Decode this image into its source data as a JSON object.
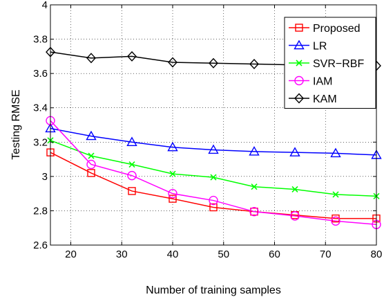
{
  "chart_data": {
    "type": "line",
    "xlabel": "Number of training samples",
    "ylabel": "Testing RMSE",
    "xlim": [
      16,
      80
    ],
    "ylim": [
      2.6,
      4.0
    ],
    "xticks": [
      20,
      30,
      40,
      50,
      60,
      70,
      80
    ],
    "yticks": [
      2.6,
      2.8,
      3.0,
      3.2,
      3.4,
      3.6,
      3.8,
      4.0
    ],
    "ytick_labels": [
      "2.6",
      "2.8",
      "3",
      "3.2",
      "3.4",
      "3.6",
      "3.8",
      "4"
    ],
    "grid": true,
    "legend_position": "top-right",
    "x": [
      16,
      24,
      32,
      40,
      48,
      56,
      64,
      72,
      80
    ],
    "series": [
      {
        "name": "Proposed",
        "color": "#ff0000",
        "marker": "square",
        "values": [
          3.14,
          3.02,
          2.915,
          2.87,
          2.82,
          2.795,
          2.775,
          2.755,
          2.755
        ]
      },
      {
        "name": "LR",
        "color": "#0000ff",
        "marker": "triangle",
        "values": [
          3.28,
          3.235,
          3.2,
          3.17,
          3.155,
          3.145,
          3.14,
          3.135,
          3.125
        ]
      },
      {
        "name": "SVR−RBF",
        "color": "#00ff00",
        "marker": "x",
        "values": [
          3.21,
          3.12,
          3.07,
          3.015,
          2.995,
          2.94,
          2.925,
          2.895,
          2.885
        ]
      },
      {
        "name": "IAM",
        "color": "#ff00ff",
        "marker": "circle",
        "values": [
          3.325,
          3.07,
          3.005,
          2.9,
          2.86,
          2.795,
          2.77,
          2.74,
          2.72
        ]
      },
      {
        "name": "KAM",
        "color": "#000000",
        "marker": "diamond",
        "values": [
          3.725,
          3.69,
          3.7,
          3.665,
          3.66,
          3.655,
          3.65,
          3.645,
          3.645
        ]
      }
    ]
  }
}
